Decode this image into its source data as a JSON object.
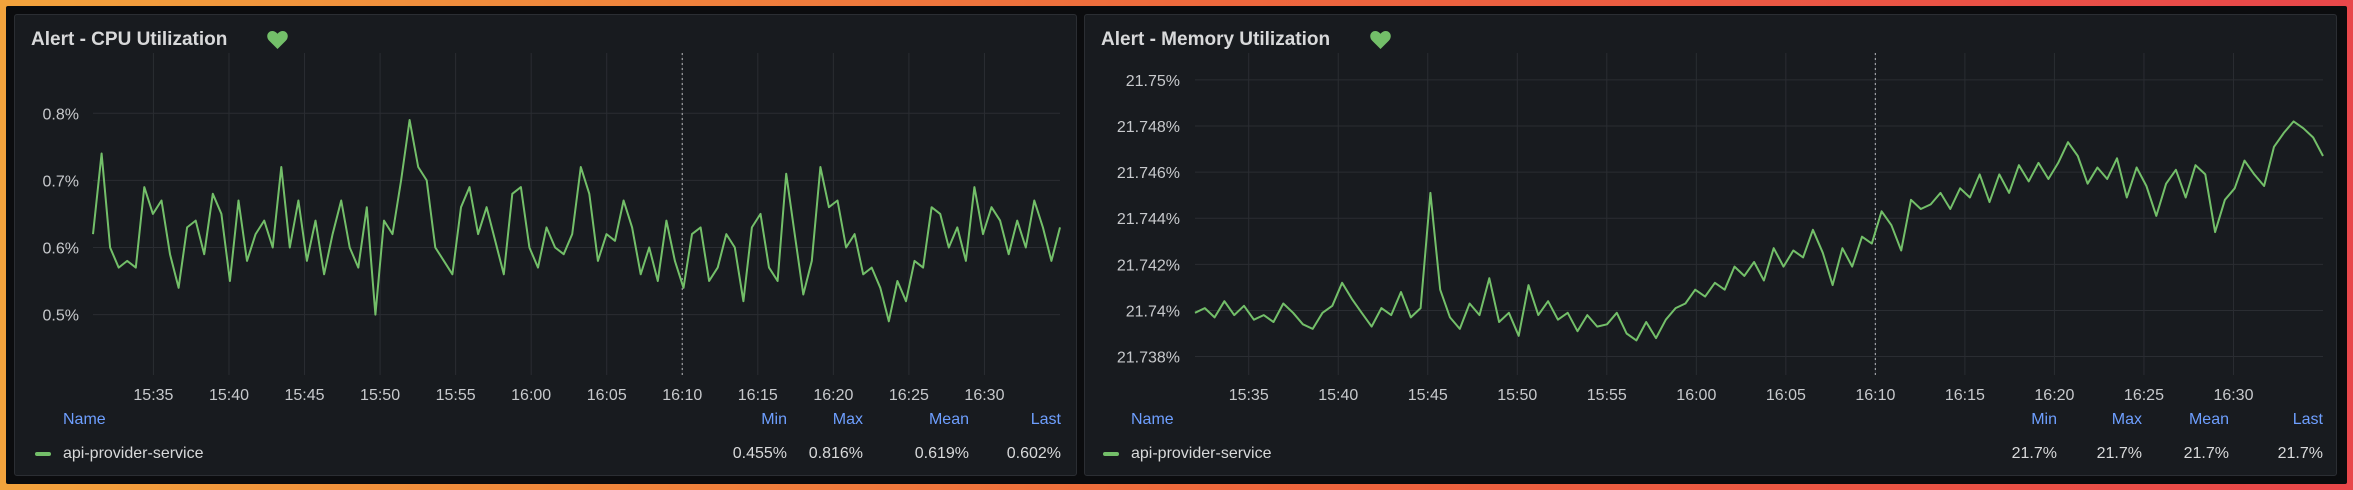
{
  "panels": [
    {
      "title": "Alert - CPU Utilization",
      "legend": {
        "headers": {
          "name": "Name",
          "min": "Min",
          "max": "Max",
          "mean": "Mean",
          "last": "Last"
        },
        "series_name": "api-provider-service",
        "min": "0.455%",
        "max": "0.816%",
        "mean": "0.619%",
        "last": "0.602%"
      },
      "chart_data": {
        "type": "line",
        "title": "Alert - CPU Utilization",
        "ylabel": "",
        "xlabel": "",
        "ylim": [
          0.41,
          0.86
        ],
        "y_ticks": [
          0.5,
          0.6,
          0.7,
          0.8
        ],
        "y_tick_labels": [
          "0.5%",
          "0.6%",
          "0.7%",
          "0.8%"
        ],
        "x_tick_labels": [
          "15:35",
          "15:40",
          "15:45",
          "15:50",
          "15:55",
          "16:00",
          "16:05",
          "16:10",
          "16:15",
          "16:20",
          "16:25",
          "16:30"
        ],
        "x_range_minutes": [
          -4,
          60
        ],
        "series": [
          {
            "name": "api-provider-service",
            "color": "#73bf69",
            "values": [
              0.62,
              0.74,
              0.6,
              0.57,
              0.58,
              0.57,
              0.69,
              0.65,
              0.67,
              0.59,
              0.54,
              0.63,
              0.64,
              0.59,
              0.68,
              0.65,
              0.55,
              0.67,
              0.58,
              0.62,
              0.64,
              0.6,
              0.72,
              0.6,
              0.67,
              0.58,
              0.64,
              0.56,
              0.62,
              0.67,
              0.6,
              0.57,
              0.66,
              0.5,
              0.64,
              0.62,
              0.7,
              0.79,
              0.72,
              0.7,
              0.6,
              0.58,
              0.56,
              0.66,
              0.69,
              0.62,
              0.66,
              0.61,
              0.56,
              0.68,
              0.69,
              0.6,
              0.57,
              0.63,
              0.6,
              0.59,
              0.62,
              0.72,
              0.68,
              0.58,
              0.62,
              0.61,
              0.67,
              0.63,
              0.56,
              0.6,
              0.55,
              0.64,
              0.58,
              0.54,
              0.62,
              0.63,
              0.55,
              0.57,
              0.62,
              0.6,
              0.52,
              0.63,
              0.65,
              0.57,
              0.55,
              0.71,
              0.62,
              0.53,
              0.58,
              0.72,
              0.66,
              0.67,
              0.6,
              0.62,
              0.56,
              0.57,
              0.54,
              0.49,
              0.55,
              0.52,
              0.58,
              0.57,
              0.66,
              0.65,
              0.6,
              0.63,
              0.58,
              0.69,
              0.62,
              0.66,
              0.64,
              0.59,
              0.64,
              0.6,
              0.67,
              0.63,
              0.58,
              0.63
            ]
          }
        ],
        "annotation_time": "16:10"
      }
    },
    {
      "title": "Alert - Memory Utilization",
      "legend": {
        "headers": {
          "name": "Name",
          "min": "Min",
          "max": "Max",
          "mean": "Mean",
          "last": "Last"
        },
        "series_name": "api-provider-service",
        "min": "21.7%",
        "max": "21.7%",
        "mean": "21.7%",
        "last": "21.7%"
      },
      "chart_data": {
        "type": "line",
        "title": "Alert - Memory Utilization",
        "ylabel": "",
        "xlabel": "",
        "ylim": [
          21.7372,
          21.7503
        ],
        "y_ticks": [
          21.738,
          21.74,
          21.742,
          21.744,
          21.746,
          21.748,
          21.75
        ],
        "y_tick_labels": [
          "21.738%",
          "21.74%",
          "21.742%",
          "21.744%",
          "21.746%",
          "21.748%",
          "21.75%"
        ],
        "x_tick_labels": [
          "15:35",
          "15:40",
          "15:45",
          "15:50",
          "15:55",
          "16:00",
          "16:05",
          "16:10",
          "16:15",
          "16:20",
          "16:25",
          "16:30"
        ],
        "x_range_minutes": [
          -3,
          60
        ],
        "series": [
          {
            "name": "api-provider-service",
            "color": "#73bf69",
            "values": [
              21.7399,
              21.7401,
              21.7397,
              21.7404,
              21.7398,
              21.7402,
              21.7396,
              21.7398,
              21.7395,
              21.7403,
              21.7399,
              21.7394,
              21.7392,
              21.7399,
              21.7402,
              21.7412,
              21.7405,
              21.7399,
              21.7393,
              21.7401,
              21.7398,
              21.7408,
              21.7397,
              21.7401,
              21.7451,
              21.7409,
              21.7397,
              21.7392,
              21.7403,
              21.7398,
              21.7414,
              21.7395,
              21.7399,
              21.7389,
              21.7411,
              21.7398,
              21.7404,
              21.7396,
              21.7399,
              21.7391,
              21.7398,
              21.7393,
              21.7394,
              21.7399,
              21.739,
              21.7387,
              21.7395,
              21.7388,
              21.7396,
              21.7401,
              21.7403,
              21.7409,
              21.7406,
              21.7412,
              21.7409,
              21.7419,
              21.7415,
              21.7421,
              21.7413,
              21.7427,
              21.7419,
              21.7426,
              21.7423,
              21.7435,
              21.7425,
              21.7411,
              21.7427,
              21.7419,
              21.7432,
              21.7429,
              21.7443,
              21.7437,
              21.7426,
              21.7448,
              21.7444,
              21.7446,
              21.7451,
              21.7444,
              21.7453,
              21.7449,
              21.7459,
              21.7447,
              21.7459,
              21.7451,
              21.7463,
              21.7456,
              21.7464,
              21.7457,
              21.7464,
              21.7473,
              21.7467,
              21.7455,
              21.7462,
              21.7457,
              21.7466,
              21.7449,
              21.7462,
              21.7454,
              21.7441,
              21.7455,
              21.7461,
              21.7449,
              21.7463,
              21.7459,
              21.7434,
              21.7448,
              21.7453,
              21.7465,
              21.7459,
              21.7454,
              21.7471,
              21.7477,
              21.7482,
              21.7479,
              21.7475,
              21.7467
            ]
          }
        ],
        "annotation_time": "16:10"
      }
    }
  ]
}
